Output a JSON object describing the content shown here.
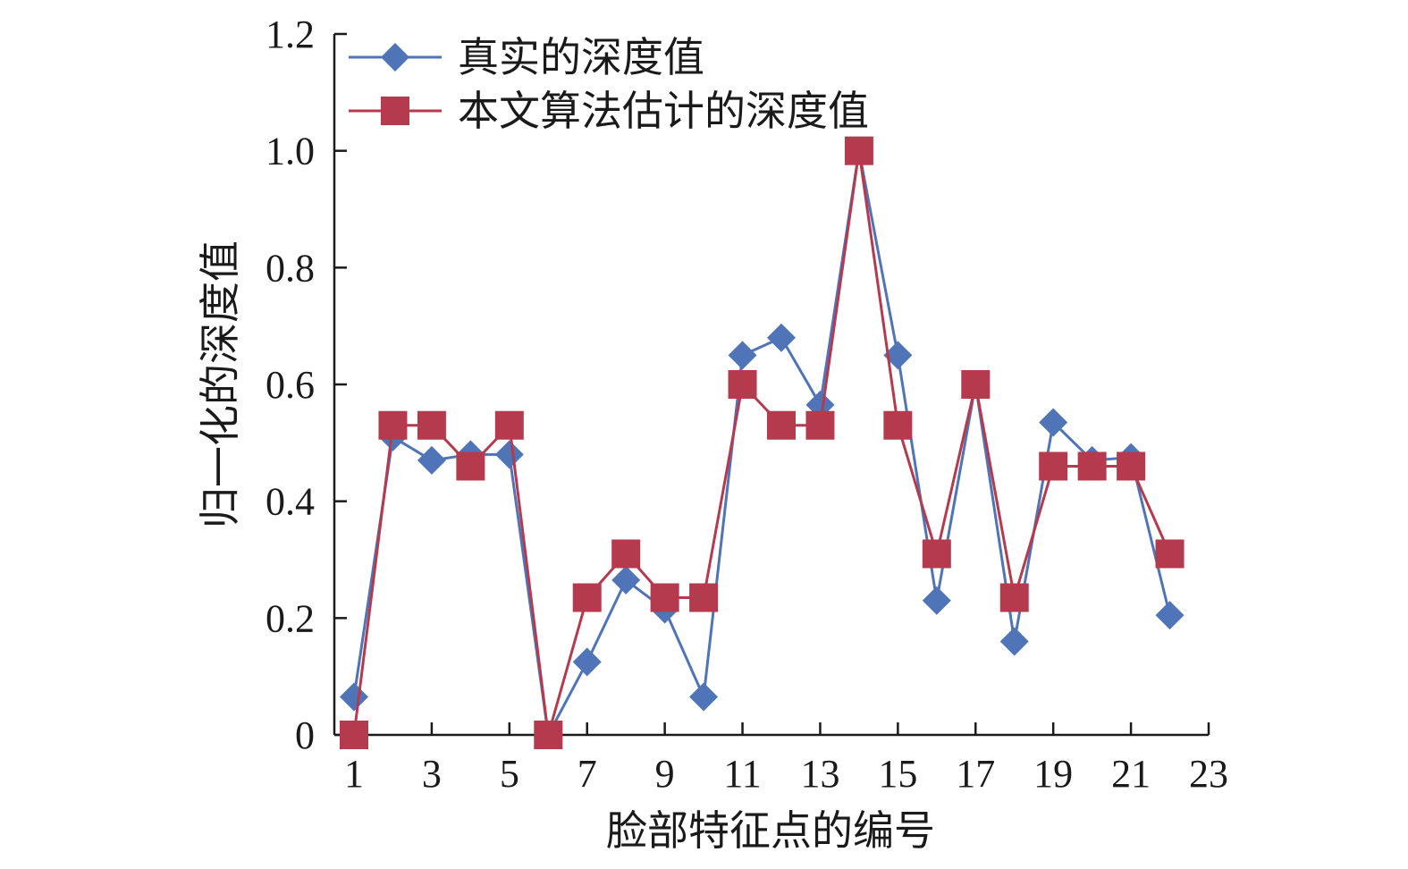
{
  "chart_data": {
    "type": "line",
    "xlabel": "脸部特征点的编号",
    "ylabel": "归一化的深度值",
    "x_ticks": [
      1,
      3,
      5,
      7,
      9,
      11,
      13,
      15,
      17,
      19,
      21,
      23
    ],
    "y_ticks": [
      "0",
      "0.2",
      "0.4",
      "0.6",
      "0.8",
      "1.0",
      "1.2"
    ],
    "y_tick_values": [
      0,
      0.2,
      0.4,
      0.6,
      0.8,
      1.0,
      1.2
    ],
    "xlim": [
      1,
      23
    ],
    "ylim": [
      0,
      1.2
    ],
    "grid": false,
    "legend_position": "top-left",
    "x": [
      1,
      2,
      3,
      4,
      5,
      6,
      7,
      8,
      9,
      10,
      11,
      12,
      13,
      14,
      15,
      16,
      17,
      18,
      19,
      20,
      21,
      22
    ],
    "series": [
      {
        "name": "真实的深度值",
        "color": "#4f74b8",
        "marker": "diamond",
        "values": [
          0.065,
          0.51,
          0.47,
          0.48,
          0.48,
          0.0,
          0.125,
          0.265,
          0.215,
          0.065,
          0.65,
          0.68,
          0.565,
          1.0,
          0.65,
          0.23,
          0.6,
          0.16,
          0.535,
          0.47,
          0.475,
          0.205
        ]
      },
      {
        "name": "本文算法估计的深度值",
        "color": "#b53a4e",
        "marker": "square",
        "values": [
          0.0,
          0.53,
          0.53,
          0.46,
          0.53,
          0.0,
          0.235,
          0.31,
          0.235,
          0.235,
          0.6,
          0.53,
          0.53,
          1.0,
          0.53,
          0.31,
          0.6,
          0.235,
          0.46,
          0.46,
          0.46,
          0.31
        ]
      }
    ]
  }
}
